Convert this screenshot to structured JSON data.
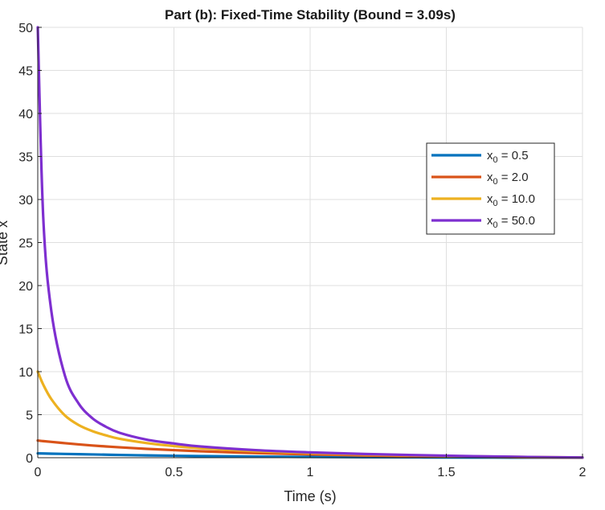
{
  "chart_data": {
    "type": "line",
    "title": "Part (b): Fixed-Time Stability (Bound = 3.09s)",
    "xlabel": "Time (s)",
    "ylabel": "State x",
    "xlim": [
      0,
      2
    ],
    "ylim": [
      0,
      50
    ],
    "xticks": [
      0,
      0.5,
      1,
      1.5,
      2
    ],
    "xtick_labels": [
      "0",
      "0.5",
      "1",
      "1.5",
      "2"
    ],
    "yticks": [
      0,
      5,
      10,
      15,
      20,
      25,
      30,
      35,
      40,
      45,
      50
    ],
    "ytick_labels": [
      "0",
      "5",
      "10",
      "15",
      "20",
      "25",
      "30",
      "35",
      "40",
      "45",
      "50"
    ],
    "grid": true,
    "legend_position": "right",
    "x": [
      0,
      0.02,
      0.05,
      0.1,
      0.15,
      0.2,
      0.25,
      0.3,
      0.4,
      0.5,
      0.6,
      0.8,
      1.0,
      1.2,
      1.4,
      1.6,
      1.8,
      2.0
    ],
    "series": [
      {
        "name": "x₀ = 0.5",
        "label_base": "x",
        "label_sub": "0",
        "label_value": " = 0.5",
        "color": "#0072BD",
        "values": [
          0.5,
          0.49,
          0.47,
          0.44,
          0.41,
          0.38,
          0.35,
          0.32,
          0.27,
          0.23,
          0.19,
          0.13,
          0.09,
          0.06,
          0.04,
          0.02,
          0.01,
          0.0
        ]
      },
      {
        "name": "x₀ = 2.0",
        "label_base": "x",
        "label_sub": "0",
        "label_value": " = 2.0",
        "color": "#D95319",
        "values": [
          2.0,
          1.93,
          1.84,
          1.69,
          1.55,
          1.42,
          1.31,
          1.21,
          1.03,
          0.88,
          0.75,
          0.54,
          0.38,
          0.26,
          0.17,
          0.1,
          0.05,
          0.02
        ]
      },
      {
        "name": "x₀ = 10.0",
        "label_base": "x",
        "label_sub": "0",
        "label_value": " = 10.0",
        "color": "#EDB120",
        "values": [
          10.0,
          8.5,
          6.8,
          4.9,
          3.8,
          3.1,
          2.6,
          2.2,
          1.7,
          1.35,
          1.1,
          0.76,
          0.53,
          0.37,
          0.25,
          0.15,
          0.08,
          0.03
        ]
      },
      {
        "name": "x₀ = 50.0",
        "label_base": "x",
        "label_sub": "0",
        "label_value": " = 50.0",
        "color": "#7E2FD0",
        "values": [
          50.0,
          28.0,
          17.0,
          9.5,
          6.3,
          4.6,
          3.6,
          2.9,
          2.1,
          1.65,
          1.3,
          0.88,
          0.62,
          0.43,
          0.29,
          0.18,
          0.09,
          0.03
        ]
      }
    ]
  }
}
